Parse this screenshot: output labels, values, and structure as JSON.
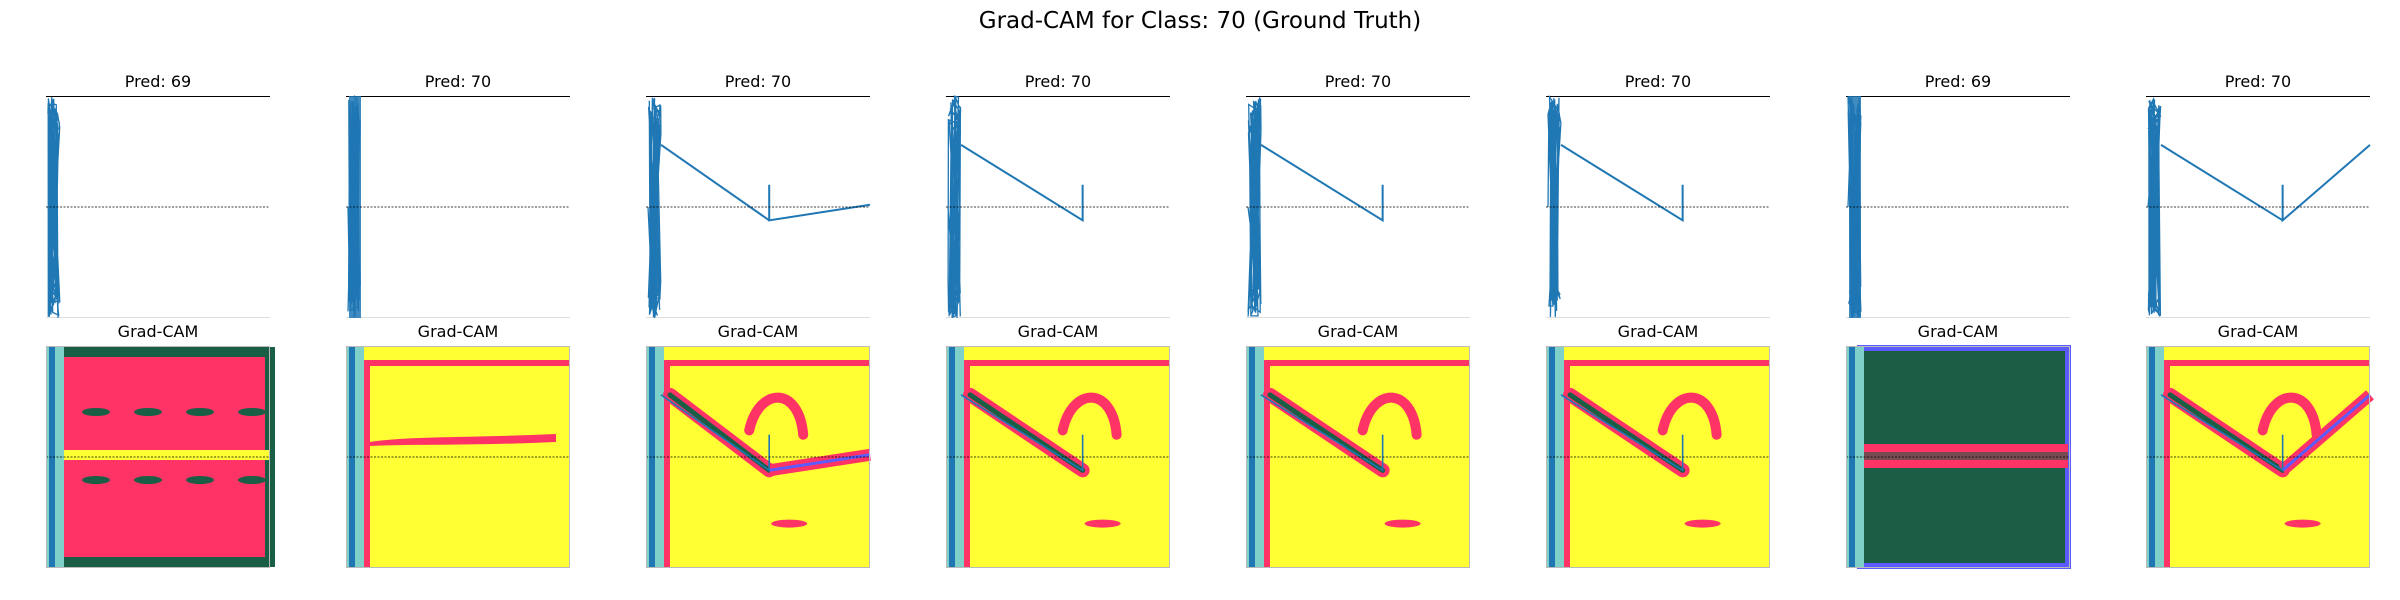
{
  "figure": {
    "suptitle": "Grad-CAM for Class: 70 (Ground Truth)",
    "cam_title": "Grad-CAM"
  },
  "colors": {
    "signal": "#1f77b4",
    "reference_line": "#000000",
    "cam_low": "#1a5e45",
    "cam_mid": "#ff3366",
    "cam_high": "#ffff33",
    "cam_edge": "#5b5bff"
  },
  "chart_data": [
    {
      "type": "line",
      "title": "Pred: 69",
      "pattern": "noise",
      "sawtooth": null,
      "cam": {
        "background": "red",
        "dark_bands": true
      }
    },
    {
      "type": "line",
      "title": "Pred: 70",
      "pattern": "noise-narrow",
      "sawtooth": null,
      "cam": {
        "background": "yellow",
        "dark_bands": false
      }
    },
    {
      "type": "line",
      "title": "Pred: 70",
      "pattern": "sawtooth",
      "sawtooth": {
        "start": 0.78,
        "drop_x": 0.55,
        "low": 0.44,
        "end": 0.51,
        "tail": true
      },
      "cam": {
        "background": "yellow",
        "dark_bands": false
      }
    },
    {
      "type": "line",
      "title": "Pred: 70",
      "pattern": "sawtooth",
      "sawtooth": {
        "start": 0.78,
        "drop_x": 0.61,
        "low": 0.44,
        "end": null,
        "tail": false
      },
      "cam": {
        "background": "yellow",
        "dark_bands": false
      }
    },
    {
      "type": "line",
      "title": "Pred: 70",
      "pattern": "sawtooth",
      "sawtooth": {
        "start": 0.78,
        "drop_x": 0.61,
        "low": 0.44,
        "end": null,
        "tail": false
      },
      "cam": {
        "background": "yellow",
        "dark_bands": false
      }
    },
    {
      "type": "line",
      "title": "Pred: 70",
      "pattern": "sawtooth",
      "sawtooth": {
        "start": 0.78,
        "drop_x": 0.61,
        "low": 0.44,
        "end": null,
        "tail": false
      },
      "cam": {
        "background": "yellow",
        "dark_bands": false
      }
    },
    {
      "type": "line",
      "title": "Pred: 69",
      "pattern": "noise-narrow",
      "sawtooth": null,
      "cam": {
        "background": "green",
        "dark_bands": true
      }
    },
    {
      "type": "line",
      "title": "Pred: 70",
      "pattern": "sawtooth",
      "sawtooth": {
        "start": 0.78,
        "drop_x": 0.61,
        "low": 0.44,
        "end": 0.78,
        "tail": true
      },
      "cam": {
        "background": "yellow",
        "dark_bands": false
      }
    }
  ]
}
